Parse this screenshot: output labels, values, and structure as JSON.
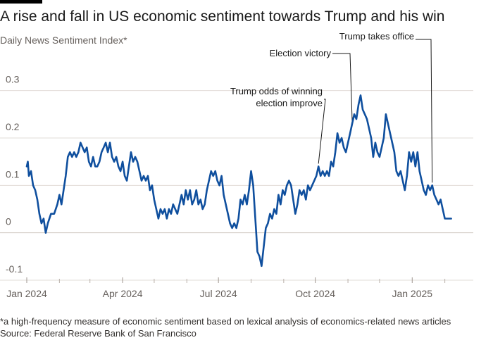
{
  "title": "A rise and fall in US economic sentiment towards Trump and his win",
  "subtitle": "Daily News Sentiment Index*",
  "footnote": "*a high-frequency measure of economic sentiment based on lexical analysis of economics-related news articles",
  "source": "Source: Federal Reserve Bank of San Francisco",
  "colors": {
    "line": "#0f4f9e",
    "grid": "#e2dcd7",
    "zero_line": "#cfc7c1",
    "tick_text": "#66605c",
    "annotation": "#1a1a1a"
  },
  "chart_data": {
    "type": "line",
    "title": "A rise and fall in US economic sentiment towards Trump and his win",
    "ylabel": "",
    "xlabel": "",
    "x_axis": "date",
    "xlim": [
      "2024-01-01",
      "2025-02-28"
    ],
    "ylim": [
      -0.1,
      0.35
    ],
    "grid": true,
    "y_ticks": [
      {
        "value": 0.3,
        "label": "0.3"
      },
      {
        "value": 0.2,
        "label": "0.2"
      },
      {
        "value": 0.1,
        "label": "0.1"
      },
      {
        "value": 0,
        "label": "0"
      },
      {
        "value": -0.1,
        "label": "-0.1"
      }
    ],
    "x_ticks": [
      {
        "date": "2024-01-01",
        "label": "Jan 2024"
      },
      {
        "date": "2024-04-01",
        "label": "Apr 2024"
      },
      {
        "date": "2024-07-01",
        "label": "Jul 2024"
      },
      {
        "date": "2024-10-01",
        "label": "Oct 2024"
      },
      {
        "date": "2025-01-01",
        "label": "Jan 2025"
      }
    ],
    "x_minor_ticks": [
      "2024-02-01",
      "2024-03-01",
      "2024-05-01",
      "2024-06-01",
      "2024-08-01",
      "2024-09-01",
      "2024-11-01",
      "2024-12-01",
      "2025-02-01"
    ],
    "series": [
      {
        "points": [
          [
            "2024-01-01",
            0.14
          ],
          [
            "2024-01-02",
            0.15
          ],
          [
            "2024-01-03",
            0.12
          ],
          [
            "2024-01-05",
            0.13
          ],
          [
            "2024-01-07",
            0.1
          ],
          [
            "2024-01-09",
            0.09
          ],
          [
            "2024-01-11",
            0.07
          ],
          [
            "2024-01-13",
            0.04
          ],
          [
            "2024-01-15",
            0.02
          ],
          [
            "2024-01-17",
            0.03
          ],
          [
            "2024-01-19",
            0.0
          ],
          [
            "2024-01-21",
            0.02
          ],
          [
            "2024-01-24",
            0.04
          ],
          [
            "2024-01-27",
            0.04
          ],
          [
            "2024-01-30",
            0.06
          ],
          [
            "2024-02-01",
            0.08
          ],
          [
            "2024-02-03",
            0.06
          ],
          [
            "2024-02-05",
            0.09
          ],
          [
            "2024-02-07",
            0.12
          ],
          [
            "2024-02-09",
            0.16
          ],
          [
            "2024-02-11",
            0.17
          ],
          [
            "2024-02-13",
            0.16
          ],
          [
            "2024-02-15",
            0.17
          ],
          [
            "2024-02-17",
            0.16
          ],
          [
            "2024-02-19",
            0.17
          ],
          [
            "2024-02-21",
            0.19
          ],
          [
            "2024-02-23",
            0.18
          ],
          [
            "2024-02-25",
            0.17
          ],
          [
            "2024-02-27",
            0.18
          ],
          [
            "2024-02-29",
            0.15
          ],
          [
            "2024-03-02",
            0.14
          ],
          [
            "2024-03-04",
            0.16
          ],
          [
            "2024-03-06",
            0.14
          ],
          [
            "2024-03-08",
            0.14
          ],
          [
            "2024-03-10",
            0.15
          ],
          [
            "2024-03-12",
            0.17
          ],
          [
            "2024-03-14",
            0.18
          ],
          [
            "2024-03-16",
            0.19
          ],
          [
            "2024-03-18",
            0.17
          ],
          [
            "2024-03-20",
            0.19
          ],
          [
            "2024-03-22",
            0.16
          ],
          [
            "2024-03-24",
            0.15
          ],
          [
            "2024-03-26",
            0.16
          ],
          [
            "2024-03-28",
            0.14
          ],
          [
            "2024-03-30",
            0.13
          ],
          [
            "2024-04-01",
            0.15
          ],
          [
            "2024-04-03",
            0.12
          ],
          [
            "2024-04-05",
            0.11
          ],
          [
            "2024-04-07",
            0.14
          ],
          [
            "2024-04-09",
            0.17
          ],
          [
            "2024-04-11",
            0.15
          ],
          [
            "2024-04-13",
            0.16
          ],
          [
            "2024-04-15",
            0.15
          ],
          [
            "2024-04-17",
            0.13
          ],
          [
            "2024-04-19",
            0.11
          ],
          [
            "2024-04-21",
            0.12
          ],
          [
            "2024-04-23",
            0.11
          ],
          [
            "2024-04-25",
            0.12
          ],
          [
            "2024-04-27",
            0.09
          ],
          [
            "2024-04-29",
            0.1
          ],
          [
            "2024-05-01",
            0.07
          ],
          [
            "2024-05-03",
            0.05
          ],
          [
            "2024-05-05",
            0.03
          ],
          [
            "2024-05-07",
            0.05
          ],
          [
            "2024-05-09",
            0.04
          ],
          [
            "2024-05-11",
            0.05
          ],
          [
            "2024-05-13",
            0.03
          ],
          [
            "2024-05-15",
            0.05
          ],
          [
            "2024-05-17",
            0.04
          ],
          [
            "2024-05-19",
            0.06
          ],
          [
            "2024-05-21",
            0.05
          ],
          [
            "2024-05-23",
            0.04
          ],
          [
            "2024-05-25",
            0.06
          ],
          [
            "2024-05-27",
            0.08
          ],
          [
            "2024-05-29",
            0.06
          ],
          [
            "2024-05-31",
            0.09
          ],
          [
            "2024-06-02",
            0.07
          ],
          [
            "2024-06-04",
            0.09
          ],
          [
            "2024-06-06",
            0.06
          ],
          [
            "2024-06-08",
            0.07
          ],
          [
            "2024-06-10",
            0.09
          ],
          [
            "2024-06-12",
            0.06
          ],
          [
            "2024-06-14",
            0.07
          ],
          [
            "2024-06-16",
            0.05
          ],
          [
            "2024-06-18",
            0.06
          ],
          [
            "2024-06-20",
            0.09
          ],
          [
            "2024-06-22",
            0.11
          ],
          [
            "2024-06-24",
            0.13
          ],
          [
            "2024-06-26",
            0.12
          ],
          [
            "2024-06-28",
            0.13
          ],
          [
            "2024-06-30",
            0.11
          ],
          [
            "2024-07-02",
            0.1
          ],
          [
            "2024-07-04",
            0.12
          ],
          [
            "2024-07-06",
            0.08
          ],
          [
            "2024-07-08",
            0.06
          ],
          [
            "2024-07-10",
            0.04
          ],
          [
            "2024-07-12",
            0.02
          ],
          [
            "2024-07-14",
            0.01
          ],
          [
            "2024-07-16",
            0.02
          ],
          [
            "2024-07-18",
            0.01
          ],
          [
            "2024-07-20",
            0.03
          ],
          [
            "2024-07-22",
            0.07
          ],
          [
            "2024-07-24",
            0.06
          ],
          [
            "2024-07-26",
            0.08
          ],
          [
            "2024-07-28",
            0.06
          ],
          [
            "2024-07-30",
            0.09
          ],
          [
            "2024-08-01",
            0.13
          ],
          [
            "2024-08-03",
            0.1
          ],
          [
            "2024-08-05",
            0.03
          ],
          [
            "2024-08-07",
            -0.04
          ],
          [
            "2024-08-09",
            -0.05
          ],
          [
            "2024-08-11",
            -0.07
          ],
          [
            "2024-08-13",
            -0.03
          ],
          [
            "2024-08-15",
            0.01
          ],
          [
            "2024-08-17",
            0.02
          ],
          [
            "2024-08-19",
            0.04
          ],
          [
            "2024-08-21",
            0.03
          ],
          [
            "2024-08-23",
            0.05
          ],
          [
            "2024-08-25",
            0.04
          ],
          [
            "2024-08-27",
            0.08
          ],
          [
            "2024-08-29",
            0.06
          ],
          [
            "2024-08-31",
            0.09
          ],
          [
            "2024-09-02",
            0.08
          ],
          [
            "2024-09-04",
            0.1
          ],
          [
            "2024-09-06",
            0.11
          ],
          [
            "2024-09-08",
            0.1
          ],
          [
            "2024-09-10",
            0.07
          ],
          [
            "2024-09-12",
            0.04
          ],
          [
            "2024-09-14",
            0.06
          ],
          [
            "2024-09-16",
            0.09
          ],
          [
            "2024-09-18",
            0.08
          ],
          [
            "2024-09-20",
            0.09
          ],
          [
            "2024-09-22",
            0.07
          ],
          [
            "2024-09-24",
            0.1
          ],
          [
            "2024-09-26",
            0.09
          ],
          [
            "2024-09-28",
            0.1
          ],
          [
            "2024-09-30",
            0.11
          ],
          [
            "2024-10-02",
            0.12
          ],
          [
            "2024-10-04",
            0.14
          ],
          [
            "2024-10-06",
            0.12
          ],
          [
            "2024-10-08",
            0.13
          ],
          [
            "2024-10-10",
            0.12
          ],
          [
            "2024-10-12",
            0.13
          ],
          [
            "2024-10-14",
            0.12
          ],
          [
            "2024-10-16",
            0.15
          ],
          [
            "2024-10-18",
            0.14
          ],
          [
            "2024-10-20",
            0.17
          ],
          [
            "2024-10-22",
            0.21
          ],
          [
            "2024-10-24",
            0.19
          ],
          [
            "2024-10-26",
            0.2
          ],
          [
            "2024-10-28",
            0.18
          ],
          [
            "2024-10-30",
            0.17
          ],
          [
            "2024-11-01",
            0.19
          ],
          [
            "2024-11-03",
            0.21
          ],
          [
            "2024-11-05",
            0.23
          ],
          [
            "2024-11-07",
            0.25
          ],
          [
            "2024-11-09",
            0.24
          ],
          [
            "2024-11-11",
            0.27
          ],
          [
            "2024-11-13",
            0.29
          ],
          [
            "2024-11-15",
            0.26
          ],
          [
            "2024-11-17",
            0.25
          ],
          [
            "2024-11-19",
            0.24
          ],
          [
            "2024-11-21",
            0.22
          ],
          [
            "2024-11-23",
            0.2
          ],
          [
            "2024-11-25",
            0.16
          ],
          [
            "2024-11-27",
            0.19
          ],
          [
            "2024-11-29",
            0.17
          ],
          [
            "2024-12-01",
            0.16
          ],
          [
            "2024-12-03",
            0.18
          ],
          [
            "2024-12-05",
            0.2
          ],
          [
            "2024-12-07",
            0.25
          ],
          [
            "2024-12-09",
            0.23
          ],
          [
            "2024-12-11",
            0.21
          ],
          [
            "2024-12-13",
            0.19
          ],
          [
            "2024-12-15",
            0.17
          ],
          [
            "2024-12-17",
            0.13
          ],
          [
            "2024-12-19",
            0.12
          ],
          [
            "2024-12-21",
            0.13
          ],
          [
            "2024-12-23",
            0.11
          ],
          [
            "2024-12-25",
            0.09
          ],
          [
            "2024-12-27",
            0.12
          ],
          [
            "2024-12-29",
            0.17
          ],
          [
            "2024-12-31",
            0.15
          ],
          [
            "2025-01-02",
            0.17
          ],
          [
            "2025-01-04",
            0.14
          ],
          [
            "2025-01-06",
            0.17
          ],
          [
            "2025-01-08",
            0.13
          ],
          [
            "2025-01-10",
            0.11
          ],
          [
            "2025-01-12",
            0.09
          ],
          [
            "2025-01-14",
            0.08
          ],
          [
            "2025-01-16",
            0.1
          ],
          [
            "2025-01-18",
            0.09
          ],
          [
            "2025-01-20",
            0.1
          ],
          [
            "2025-01-22",
            0.08
          ],
          [
            "2025-01-24",
            0.07
          ],
          [
            "2025-01-26",
            0.06
          ],
          [
            "2025-01-28",
            0.07
          ],
          [
            "2025-01-30",
            0.05
          ],
          [
            "2025-02-01",
            0.03
          ],
          [
            "2025-02-04",
            0.03
          ],
          [
            "2025-02-07",
            0.03
          ]
        ]
      }
    ],
    "annotations": [
      {
        "lines": [
          "Trump odds of winning",
          "election improve"
        ],
        "date": "2024-10-04",
        "value": 0.14
      },
      {
        "lines": [
          "Election victory"
        ],
        "date": "2024-11-05",
        "value": 0.23
      },
      {
        "lines": [
          "Trump takes office"
        ],
        "date": "2025-01-20",
        "value": 0.1
      }
    ]
  }
}
